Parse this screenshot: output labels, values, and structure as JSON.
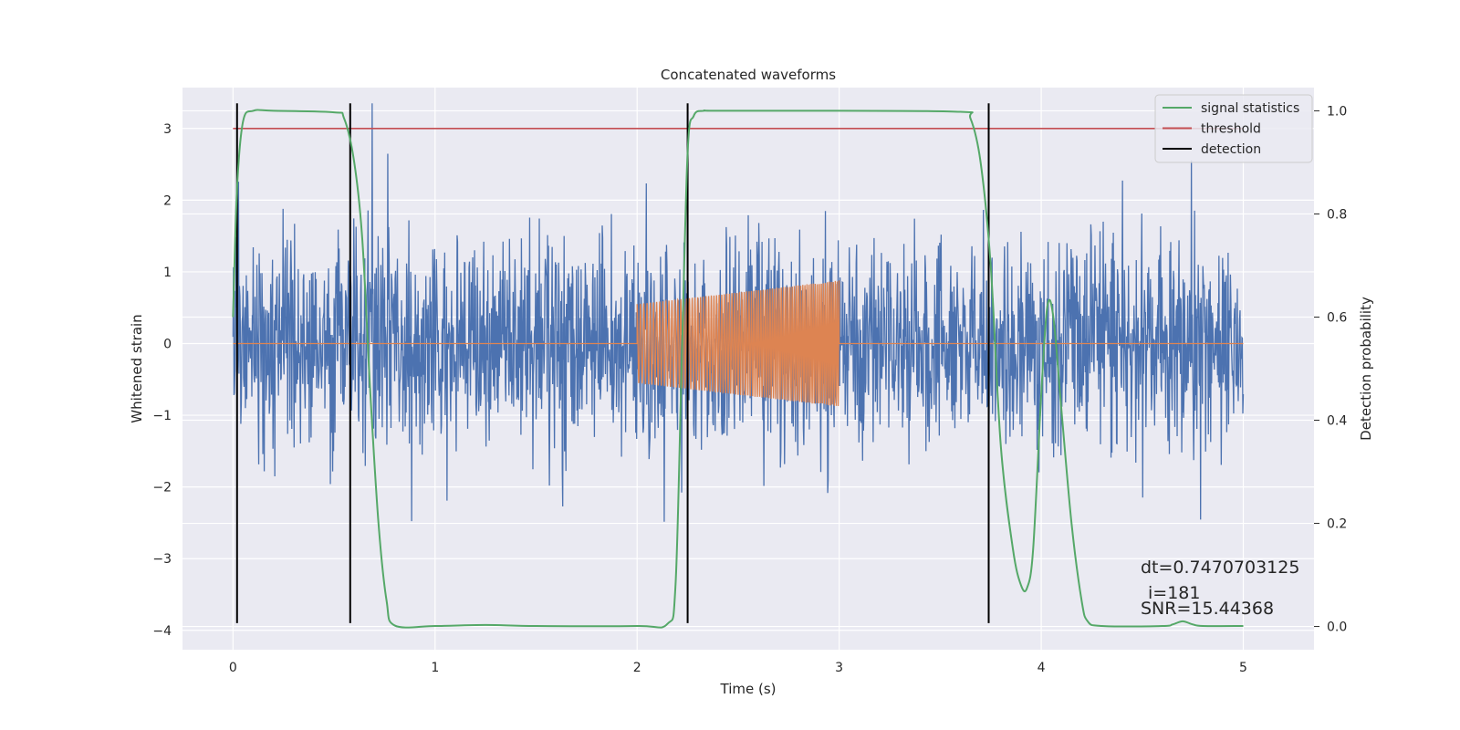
{
  "chart_data": {
    "type": "line",
    "title": "Concatenated waveforms",
    "xlabel": "Time (s)",
    "ylabel": "Whitened strain",
    "y2label": "Detection probability",
    "xlim": [
      -0.25,
      5.35
    ],
    "ylim": [
      -4.27,
      3.57
    ],
    "y2lim": [
      -0.045,
      1.045
    ],
    "x_ticks": [
      0,
      1,
      2,
      3,
      4,
      5
    ],
    "y_ticks": [
      -4,
      -3,
      -2,
      -1,
      0,
      1,
      2,
      3
    ],
    "y2_ticks": [
      0.0,
      0.2,
      0.4,
      0.6,
      0.8,
      1.0
    ],
    "grid": true,
    "legend_position": "top-right",
    "colors": {
      "background": "#eaeaf2",
      "grid": "#ffffff",
      "strain": "#4c72b0",
      "injected": "#dd8452",
      "signal_statistics": "#55a868",
      "threshold": "#c44e52",
      "detection": "#000000"
    },
    "series": [
      {
        "name": "whitened strain",
        "axis": "left",
        "x_range": [
          0,
          5
        ],
        "approx_abs_max": 3.35,
        "description_values": "noise"
      },
      {
        "name": "injected waveform",
        "axis": "left",
        "x_range": [
          2,
          3
        ],
        "amplitude_start": 0.55,
        "amplitude_end": 0.88,
        "flat_value_elsewhere": 0
      },
      {
        "name": "signal statistics",
        "axis": "right",
        "x": [
          0,
          0.02,
          0.05,
          0.1,
          0.2,
          0.5,
          0.55,
          0.6,
          0.64,
          0.68,
          0.72,
          0.76,
          0.8,
          1.0,
          1.25,
          1.5,
          2.0,
          2.15,
          2.19,
          2.22,
          2.25,
          2.28,
          2.33,
          2.4,
          3.0,
          3.6,
          3.65,
          3.7,
          3.75,
          3.8,
          3.86,
          3.9,
          3.93,
          3.96,
          4.0,
          4.03,
          4.06,
          4.1,
          4.15,
          4.2,
          4.23,
          4.3,
          4.6,
          4.65,
          4.7,
          4.75,
          4.8,
          5.0
        ],
        "values": [
          0.6,
          0.85,
          0.98,
          1.0,
          1.0,
          0.997,
          0.985,
          0.9,
          0.75,
          0.45,
          0.2,
          0.05,
          0.002,
          0.001,
          0.003,
          0.001,
          0.001,
          0.005,
          0.08,
          0.5,
          0.92,
          0.99,
          1.0,
          1.0,
          1.0,
          0.998,
          0.985,
          0.9,
          0.7,
          0.35,
          0.15,
          0.08,
          0.075,
          0.15,
          0.45,
          0.62,
          0.6,
          0.42,
          0.2,
          0.05,
          0.01,
          0.001,
          0.001,
          0.004,
          0.01,
          0.004,
          0.001,
          0.001
        ]
      }
    ],
    "threshold": {
      "name": "threshold",
      "value": 3.0,
      "x_range": [
        0,
        5
      ]
    },
    "detections": {
      "name": "detection",
      "x": [
        0.02,
        0.58,
        2.25,
        3.74
      ],
      "y_range": [
        -3.9,
        3.35
      ]
    },
    "legend": [
      {
        "label": "signal statistics",
        "key": "signal_statistics"
      },
      {
        "label": "threshold",
        "key": "threshold"
      },
      {
        "label": "detection",
        "key": "detection"
      }
    ],
    "annotations": {
      "dt": "dt=0.7470703125",
      "i": "i=181",
      "snr": "SNR=15.44368"
    }
  }
}
